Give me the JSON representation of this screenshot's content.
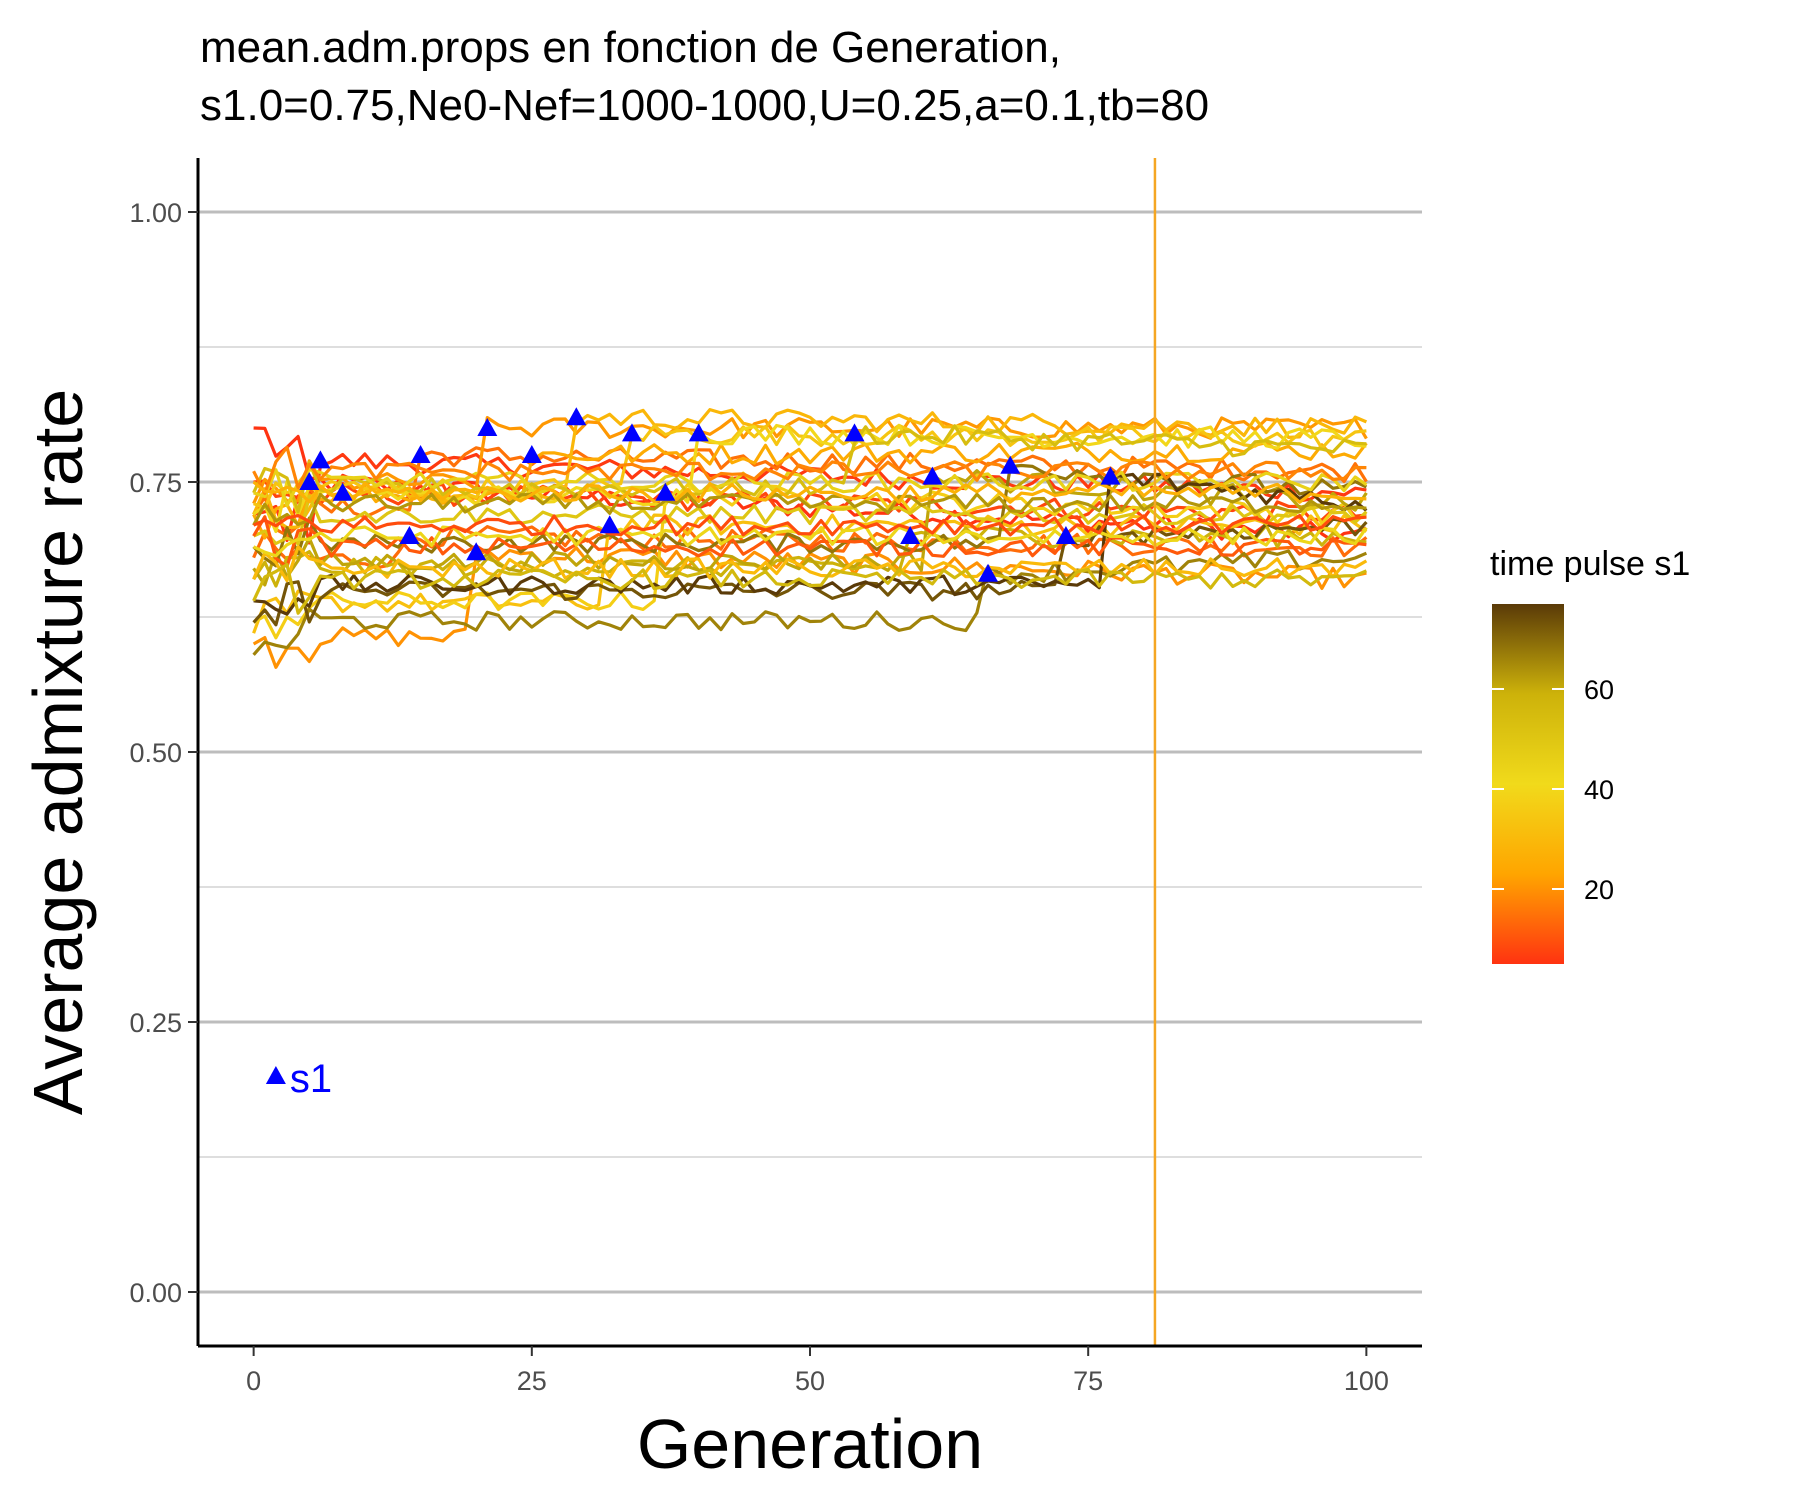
{
  "chart_data": {
    "type": "line",
    "title_lines": [
      "mean.adm.props en fonction de Generation,",
      "s1.0=0.75,Ne0-Nef=1000-1000,U=0.25,a=0.1,tb=80"
    ],
    "xlabel": "Generation",
    "ylabel": "Average admixture rate",
    "xlim": [
      -5,
      105
    ],
    "ylim": [
      -0.05,
      1.05
    ],
    "x_ticks": [
      0,
      25,
      50,
      75,
      100
    ],
    "x_tick_labels": [
      "0",
      "25",
      "50",
      "75",
      "100"
    ],
    "y_ticks": [
      0,
      0.25,
      0.5,
      0.75,
      1
    ],
    "y_tick_labels": [
      "0.00",
      "0.25",
      "0.50",
      "0.75",
      "1.00"
    ],
    "y_minor_ticks": [
      0.125,
      0.375,
      0.625,
      0.875
    ],
    "grid": "horizontal",
    "vline": {
      "x": 81,
      "color": "#f5a623"
    },
    "legend": {
      "title": "time pulse s1",
      "placement": "right",
      "type": "colorbar",
      "range": [
        5,
        77
      ],
      "ticks": [
        20,
        40,
        60
      ],
      "tick_labels": [
        "20",
        "40",
        "60"
      ],
      "colors": [
        "#ff3311",
        "#ffa500",
        "#f1da1b",
        "#cdb20a",
        "#5a3a08"
      ]
    },
    "annotation": {
      "text": "s1",
      "x": 2,
      "y": 0.2,
      "color": "#0000ff"
    },
    "marker_color": "#0000ff",
    "series": [
      {
        "pulse": 5,
        "start": 0.8,
        "jump_to": 0.75,
        "end": 0.7
      },
      {
        "pulse": 6,
        "start": 0.72,
        "jump_to": 0.77,
        "end": 0.74
      },
      {
        "pulse": 8,
        "start": 0.75,
        "jump_to": 0.74,
        "end": 0.72
      },
      {
        "pulse": 14,
        "start": 0.68,
        "jump_to": 0.7,
        "end": 0.69
      },
      {
        "pulse": 15,
        "start": 0.72,
        "jump_to": 0.775,
        "end": 0.76
      },
      {
        "pulse": 20,
        "start": 0.6,
        "jump_to": 0.685,
        "end": 0.66
      },
      {
        "pulse": 21,
        "start": 0.73,
        "jump_to": 0.8,
        "end": 0.8
      },
      {
        "pulse": 25,
        "start": 0.72,
        "jump_to": 0.775,
        "end": 0.78
      },
      {
        "pulse": 29,
        "start": 0.72,
        "jump_to": 0.81,
        "end": 0.8
      },
      {
        "pulse": 32,
        "start": 0.61,
        "jump_to": 0.71,
        "end": 0.71
      },
      {
        "pulse": 34,
        "start": 0.73,
        "jump_to": 0.795,
        "end": 0.79
      },
      {
        "pulse": 37,
        "start": 0.62,
        "jump_to": 0.74,
        "end": 0.72
      },
      {
        "pulse": 40,
        "start": 0.72,
        "jump_to": 0.795,
        "end": 0.79
      },
      {
        "pulse": 54,
        "start": 0.74,
        "jump_to": 0.795,
        "end": 0.78
      },
      {
        "pulse": 59,
        "start": 0.66,
        "jump_to": 0.7,
        "end": 0.7
      },
      {
        "pulse": 61,
        "start": 0.67,
        "jump_to": 0.755,
        "end": 0.73
      },
      {
        "pulse": 66,
        "start": 0.59,
        "jump_to": 0.665,
        "end": 0.68
      },
      {
        "pulse": 68,
        "start": 0.69,
        "jump_to": 0.765,
        "end": 0.74
      },
      {
        "pulse": 73,
        "start": 0.62,
        "jump_to": 0.7,
        "end": 0.71
      },
      {
        "pulse": 77,
        "start": 0.64,
        "jump_to": 0.755,
        "end": 0.73
      },
      {
        "pulse": 50,
        "start": 0.7,
        "jump_to": null,
        "end": 0.72
      },
      {
        "pulse": 45,
        "start": 0.74,
        "jump_to": null,
        "end": 0.75
      },
      {
        "pulse": 11,
        "start": 0.7,
        "jump_to": null,
        "end": 0.69
      },
      {
        "pulse": 30,
        "start": 0.66,
        "jump_to": null,
        "end": 0.67
      },
      {
        "pulse": 63,
        "start": 0.71,
        "jump_to": null,
        "end": 0.73
      },
      {
        "pulse": 18,
        "start": 0.76,
        "jump_to": null,
        "end": 0.76
      },
      {
        "pulse": 43,
        "start": 0.69,
        "jump_to": null,
        "end": 0.7
      },
      {
        "pulse": 56,
        "start": 0.64,
        "jump_to": null,
        "end": 0.66
      },
      {
        "pulse": 9,
        "start": 0.71,
        "jump_to": null,
        "end": 0.71
      },
      {
        "pulse": 27,
        "start": 0.75,
        "jump_to": null,
        "end": 0.74
      }
    ]
  }
}
